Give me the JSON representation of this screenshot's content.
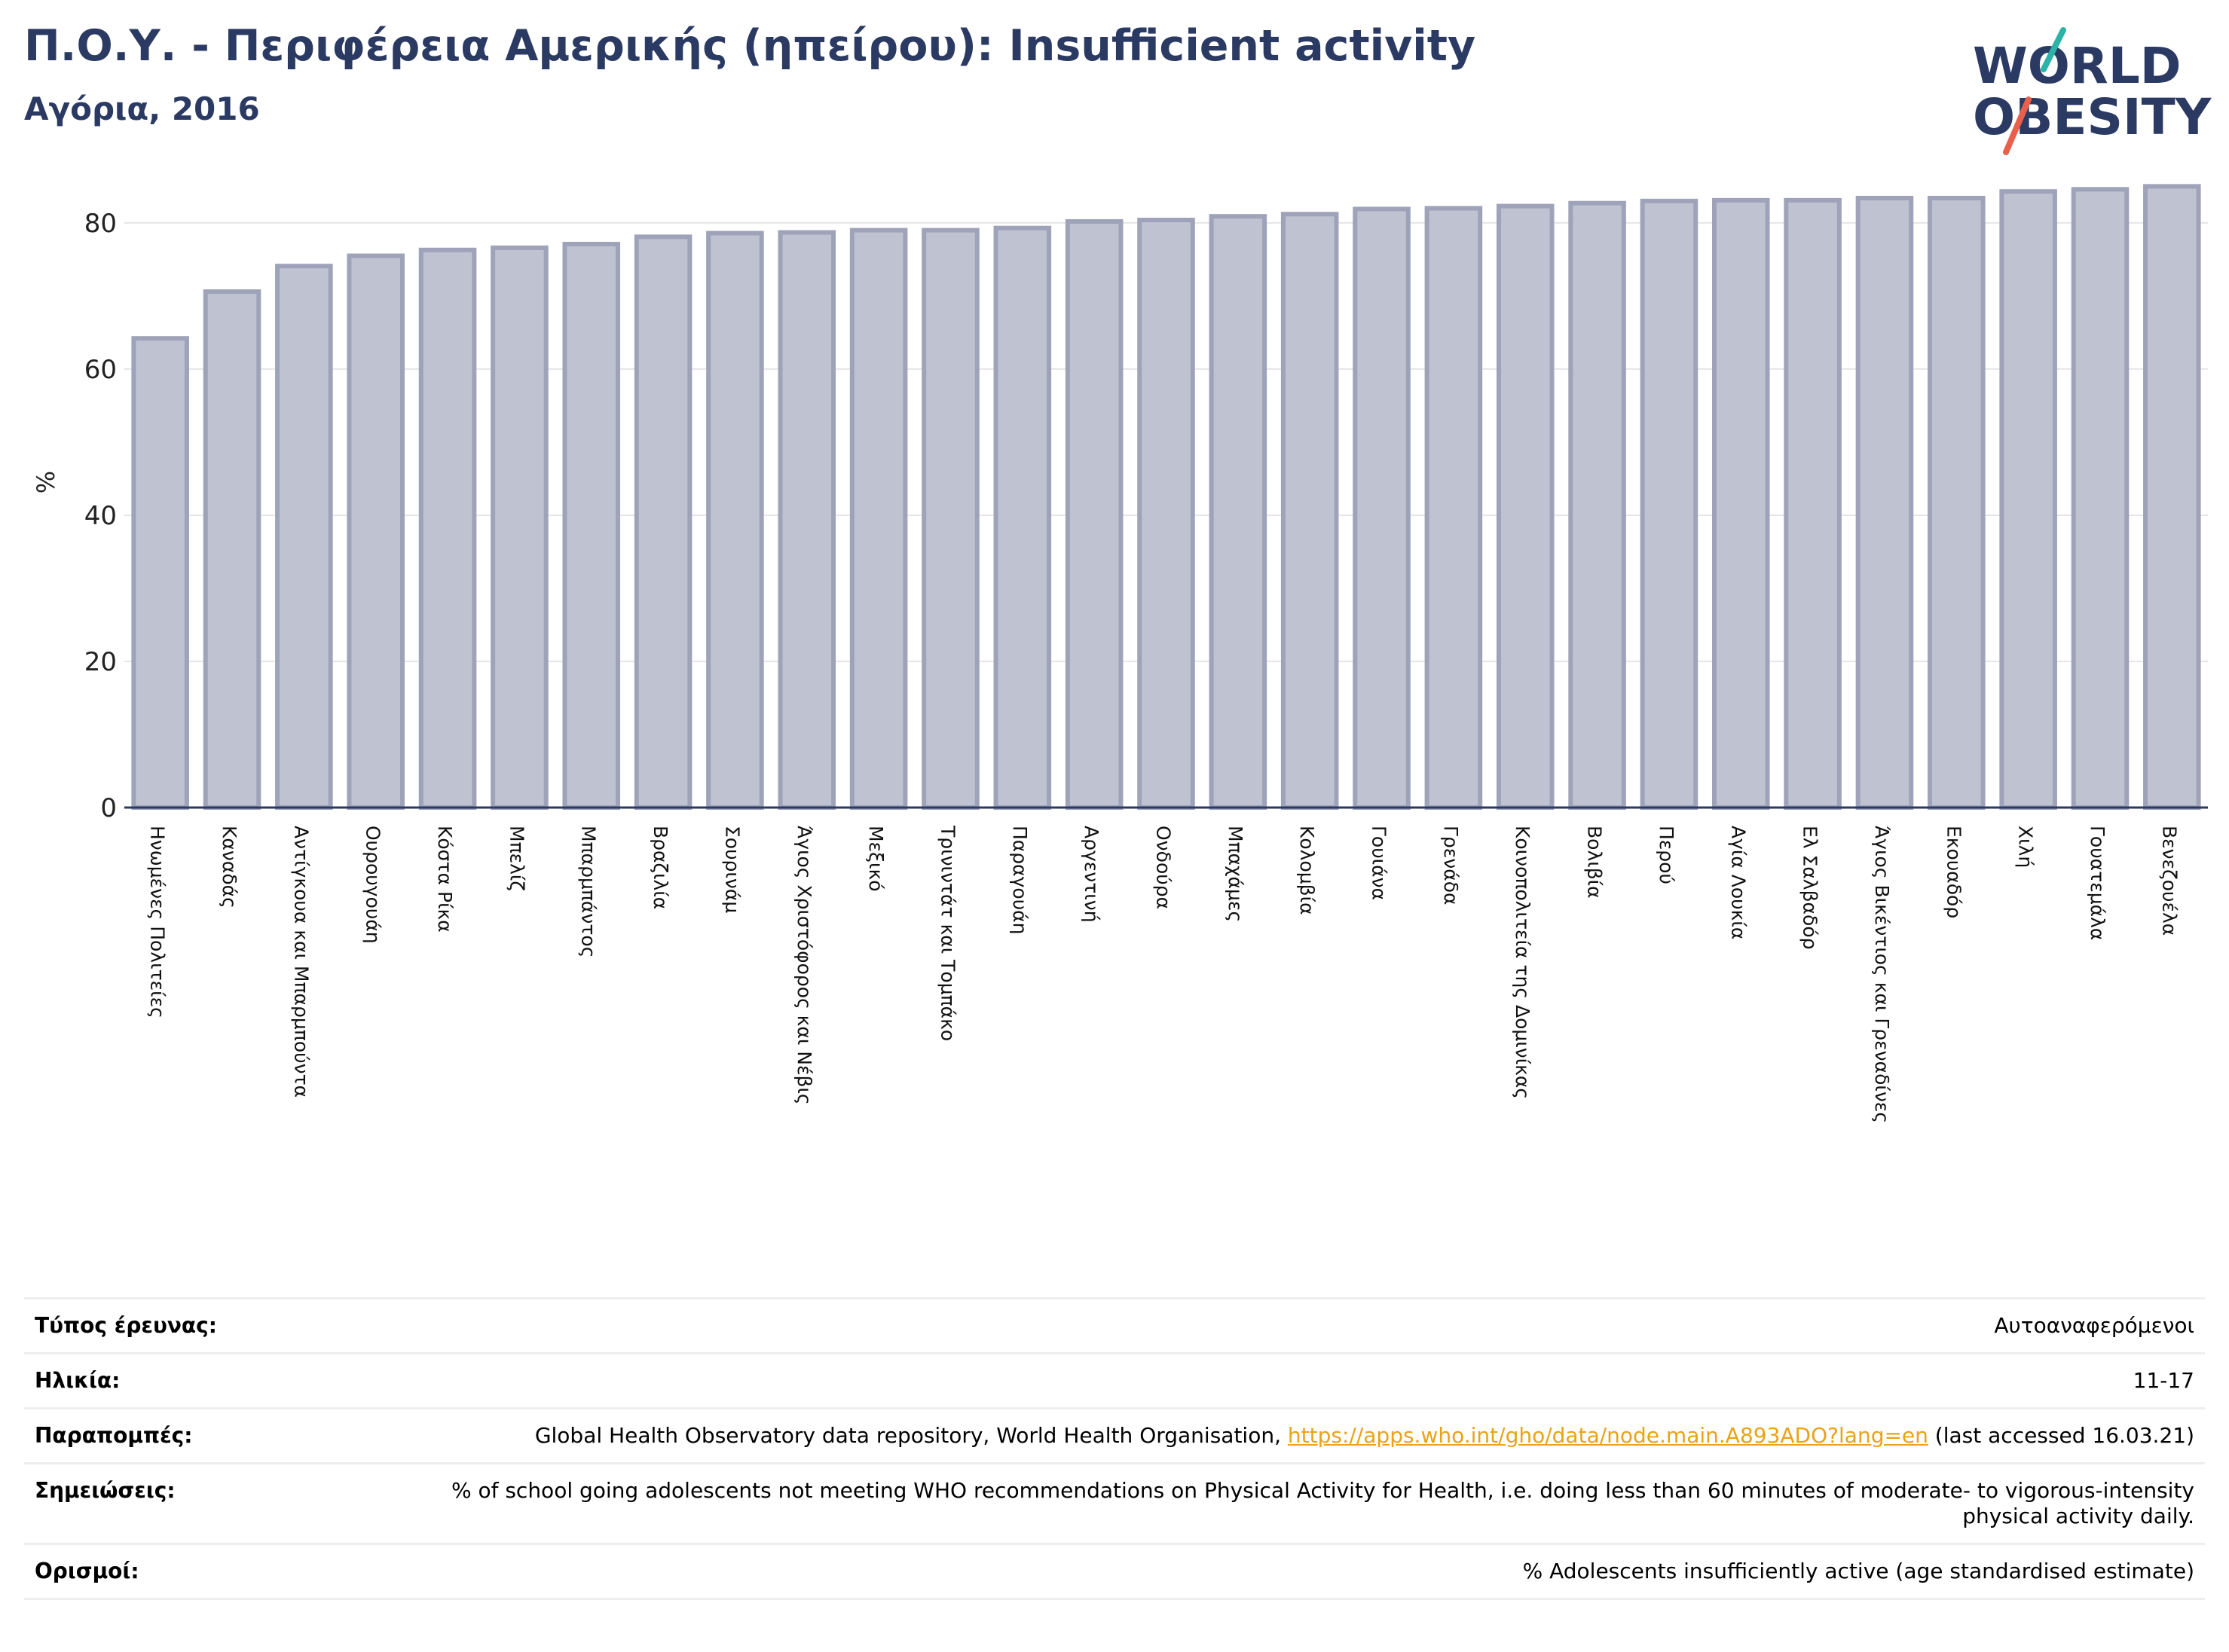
{
  "header": {
    "title": "Π.Ο.Υ. - Περιφέρεια Αμερικής (ηπείρου): Insufficient activity",
    "subtitle": "Αγόρια, 2016"
  },
  "logo": {
    "line1": "WORLD",
    "line2": "OBESITY",
    "text_color": "#2b3a62",
    "accent_teal": "#2ab3a6",
    "accent_red": "#e8604c"
  },
  "chart_data": {
    "type": "bar",
    "ylabel": "%",
    "ylim": [
      0,
      87
    ],
    "yticks": [
      0,
      20,
      40,
      60,
      80
    ],
    "grid": true,
    "bar_color": "#bfc2d0",
    "bar_edge_color": "#9ea3ba",
    "categories": [
      "Ηνωμένες Πολιτείες",
      "Καναδάς",
      "Αντίγκουα και Μπαρμπούντα",
      "Ουρουγουάη",
      "Κόστα Ρίκα",
      "Μπελίζ",
      "Μπαρμπάντος",
      "Βραζιλία",
      "Σουρινάμ",
      "Άγιος Χριστόφορος και Νέβις",
      "Μεξικό",
      "Τρινιντάτ και Τομπάκο",
      "Παραγουάη",
      "Αργεντινή",
      "Ονδούρα",
      "Μπαχάμες",
      "Κολομβία",
      "Γουιάνα",
      "Γρενάδα",
      "Κοινοπολιτεία της Δομινίκας",
      "Βολιβία",
      "Περού",
      "Αγία Λουκία",
      "Ελ Σαλβαδόρ",
      "Άγιος Βικέντιος και Γρεναδίνες",
      "Εκουαδόρ",
      "Χιλή",
      "Γουατεμάλα",
      "Βενεζουέλα"
    ],
    "values": [
      64.2,
      70.6,
      74.1,
      75.5,
      76.3,
      76.6,
      77.1,
      78.1,
      78.6,
      78.7,
      79.0,
      79.0,
      79.3,
      80.2,
      80.4,
      80.9,
      81.2,
      81.9,
      82.0,
      82.3,
      82.7,
      83.0,
      83.1,
      83.1,
      83.4,
      83.4,
      84.3,
      84.6,
      85.0
    ]
  },
  "meta": {
    "rows": [
      {
        "label": "Τύπος έρευνας:",
        "value": "Αυτοαναφερόμενοι"
      },
      {
        "label": "Ηλικία:",
        "value": "11-17"
      },
      {
        "label": "Παραπομπές:",
        "value_pre": "Global Health Observatory data repository, World Health Organisation, ",
        "link": "https://apps.who.int/gho/data/node.main.A893ADO?lang=en",
        "value_post": " (last accessed 16.03.21)"
      },
      {
        "label": "Σημειώσεις:",
        "value": "% of school going adolescents not meeting WHO recommendations on Physical Activity for Health, i.e. doing less than 60 minutes of moderate- to vigorous-intensity physical activity daily."
      },
      {
        "label": "Ορισμοί:",
        "value": "% Adolescents insufficiently active (age standardised estimate)"
      }
    ]
  }
}
